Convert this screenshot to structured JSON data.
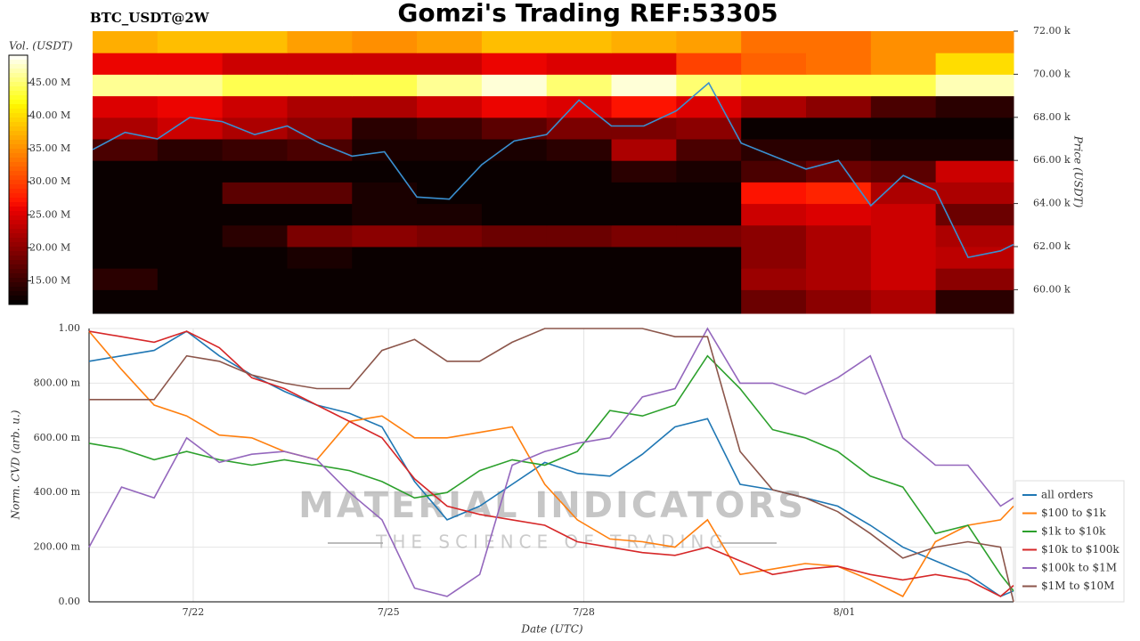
{
  "chart_data": [
    {
      "type": "heatmap",
      "title": "Gomzi's Trading REF:53305",
      "subtitle": "BTC_USDT@2W",
      "xlim": [
        20.4,
        34.6
      ],
      "xbins": [
        20.4,
        21.4,
        22.4,
        23.4,
        24.4,
        25.4,
        26.4,
        27.4,
        28.4,
        29.4,
        30.4,
        31.4,
        32.4,
        33.4,
        34.6
      ],
      "ybins": [
        58900,
        60000,
        61000,
        62000,
        63000,
        64000,
        65000,
        66000,
        67000,
        68000,
        69000,
        70000,
        71000,
        72000
      ],
      "z": [
        [
          12000000,
          12000000,
          12000000,
          12000000,
          12000000,
          12000000,
          12000000,
          12000000,
          12000000,
          12000000,
          18000000,
          20000000,
          22000000,
          14000000
        ],
        [
          14000000,
          12000000,
          12000000,
          12000000,
          12000000,
          12000000,
          12000000,
          12000000,
          12000000,
          12000000,
          21000000,
          22000000,
          24000000,
          20000000
        ],
        [
          12000000,
          12000000,
          12000000,
          13000000,
          12000000,
          12000000,
          12000000,
          12000000,
          12000000,
          12000000,
          20000000,
          22000000,
          24000000,
          23000000
        ],
        [
          12000000,
          12000000,
          14000000,
          19000000,
          20000000,
          19000000,
          18000000,
          18000000,
          19000000,
          19000000,
          20000000,
          22000000,
          24000000,
          22000000
        ],
        [
          12000000,
          12000000,
          12000000,
          12000000,
          13000000,
          13000000,
          12000000,
          12000000,
          12000000,
          12000000,
          24000000,
          25000000,
          24000000,
          18000000
        ],
        [
          12000000,
          12000000,
          17000000,
          17000000,
          13000000,
          12000000,
          12000000,
          12000000,
          12000000,
          12000000,
          27000000,
          28000000,
          22000000,
          22000000
        ],
        [
          12000000,
          12000000,
          12000000,
          12000000,
          12000000,
          12000000,
          12000000,
          12000000,
          14000000,
          13000000,
          16000000,
          18000000,
          17000000,
          24000000
        ],
        [
          16000000,
          14000000,
          15000000,
          16000000,
          13000000,
          13000000,
          13000000,
          14000000,
          22000000,
          16000000,
          14000000,
          14000000,
          13000000,
          13000000
        ],
        [
          22000000,
          24000000,
          22000000,
          20000000,
          14000000,
          15000000,
          17000000,
          19000000,
          19000000,
          20000000,
          12000000,
          12000000,
          12000000,
          12000000
        ],
        [
          25000000,
          26000000,
          24000000,
          22000000,
          22000000,
          24000000,
          26000000,
          25000000,
          27000000,
          25000000,
          22000000,
          20000000,
          16000000,
          14000000
        ],
        [
          46000000,
          46000000,
          44000000,
          44000000,
          44000000,
          46000000,
          48000000,
          45000000,
          48000000,
          45000000,
          44000000,
          44000000,
          44000000,
          47000000
        ],
        [
          26000000,
          26000000,
          24000000,
          24000000,
          24000000,
          24000000,
          26000000,
          25000000,
          25000000,
          30000000,
          32000000,
          33000000,
          35000000,
          40000000
        ],
        [
          37000000,
          38000000,
          38000000,
          36000000,
          35000000,
          36000000,
          38000000,
          38000000,
          37000000,
          36000000,
          33000000,
          33000000,
          35000000,
          35000000
        ]
      ],
      "colorbar": {
        "label": "Vol. (USDT)",
        "lim": [
          11400000,
          49200000
        ],
        "ticks": [
          {
            "value": 15000000,
            "label": "15.00 M"
          },
          {
            "value": 20000000,
            "label": "20.00 M"
          },
          {
            "value": 25000000,
            "label": "25.00 M"
          },
          {
            "value": 30000000,
            "label": "30.00 M"
          },
          {
            "value": 35000000,
            "label": "35.00 M"
          },
          {
            "value": 40000000,
            "label": "40.00 M"
          },
          {
            "value": 45000000,
            "label": "45.00 M"
          }
        ]
      },
      "ylabel": "Price (USDT)",
      "ylim": [
        58900,
        72000
      ],
      "yticks": [
        {
          "value": 60000,
          "label": "60.00 k"
        },
        {
          "value": 62000,
          "label": "62.00 k"
        },
        {
          "value": 64000,
          "label": "64.00 k"
        },
        {
          "value": 66000,
          "label": "66.00 k"
        },
        {
          "value": 68000,
          "label": "68.00 k"
        },
        {
          "value": 70000,
          "label": "70.00 k"
        },
        {
          "value": 72000,
          "label": "72.00 k"
        }
      ],
      "line": {
        "color": "#3a8fd0",
        "x": [
          20.4,
          20.9,
          21.4,
          21.9,
          22.4,
          22.9,
          23.4,
          23.9,
          24.4,
          24.9,
          25.4,
          25.9,
          26.4,
          26.9,
          27.4,
          27.9,
          28.4,
          28.9,
          29.4,
          29.9,
          30.4,
          30.9,
          31.4,
          31.9,
          32.4,
          32.9,
          33.4,
          33.9,
          34.4,
          34.6
        ],
        "values": [
          66500,
          67300,
          67000,
          68000,
          67800,
          67200,
          67600,
          66800,
          66200,
          66400,
          64300,
          64200,
          65800,
          66900,
          67200,
          68800,
          67600,
          67600,
          68300,
          69600,
          66800,
          66200,
          65600,
          66000,
          63900,
          65300,
          64600,
          61500,
          61800,
          62100
        ]
      }
    },
    {
      "type": "line",
      "ylabel": "Norm. CVD (arb. u.)",
      "xlabel": "Date (UTC)",
      "xlim": [
        20.4,
        34.6
      ],
      "xticks": [
        {
          "value": 22,
          "label": "7/22"
        },
        {
          "value": 25,
          "label": "7/25"
        },
        {
          "value": 28,
          "label": "7/28"
        },
        {
          "value": 32,
          "label": "8/01"
        }
      ],
      "ylim": [
        0,
        1
      ],
      "yticks": [
        {
          "value": 0,
          "label": "0.00"
        },
        {
          "value": 0.2,
          "label": "200.00 m"
        },
        {
          "value": 0.4,
          "label": "400.00 m"
        },
        {
          "value": 0.6,
          "label": "600.00 m"
        },
        {
          "value": 0.8,
          "label": "800.00 m"
        },
        {
          "value": 1,
          "label": "1.00"
        }
      ],
      "grid": true,
      "legend": "right",
      "annotations": [
        "MATERIAL INDICATORS",
        "THE SCIENCE OF TRADING"
      ],
      "x": [
        20.4,
        20.9,
        21.4,
        21.9,
        22.4,
        22.9,
        23.4,
        23.9,
        24.4,
        24.9,
        25.4,
        25.9,
        26.4,
        26.9,
        27.4,
        27.9,
        28.4,
        28.9,
        29.4,
        29.9,
        30.4,
        30.9,
        31.4,
        31.9,
        32.4,
        32.9,
        33.4,
        33.9,
        34.4,
        34.6
      ],
      "series": [
        {
          "name": "all orders",
          "color": "#1f77b4",
          "values": [
            0.88,
            0.9,
            0.92,
            0.99,
            0.9,
            0.83,
            0.77,
            0.72,
            0.69,
            0.64,
            0.44,
            0.3,
            0.35,
            0.43,
            0.51,
            0.47,
            0.46,
            0.54,
            0.64,
            0.67,
            0.43,
            0.41,
            0.38,
            0.35,
            0.28,
            0.2,
            0.15,
            0.1,
            0.02,
            0.04
          ]
        },
        {
          "name": "$100 to $1k",
          "color": "#ff7f0e",
          "values": [
            0.99,
            0.85,
            0.72,
            0.68,
            0.61,
            0.6,
            0.55,
            0.52,
            0.66,
            0.68,
            0.6,
            0.6,
            0.62,
            0.64,
            0.43,
            0.3,
            0.23,
            0.22,
            0.2,
            0.3,
            0.1,
            0.12,
            0.14,
            0.13,
            0.08,
            0.02,
            0.22,
            0.28,
            0.3,
            0.35
          ]
        },
        {
          "name": "$1k to $10k",
          "color": "#2ca02c",
          "values": [
            0.58,
            0.56,
            0.52,
            0.55,
            0.52,
            0.5,
            0.52,
            0.5,
            0.48,
            0.44,
            0.38,
            0.4,
            0.48,
            0.52,
            0.5,
            0.55,
            0.7,
            0.68,
            0.72,
            0.9,
            0.78,
            0.63,
            0.6,
            0.55,
            0.46,
            0.42,
            0.25,
            0.28,
            0.1,
            0.04
          ]
        },
        {
          "name": "$10k to $100k",
          "color": "#d62728",
          "values": [
            0.99,
            0.97,
            0.95,
            0.99,
            0.93,
            0.82,
            0.78,
            0.72,
            0.66,
            0.6,
            0.45,
            0.35,
            0.32,
            0.3,
            0.28,
            0.22,
            0.2,
            0.18,
            0.17,
            0.2,
            0.15,
            0.1,
            0.12,
            0.13,
            0.1,
            0.08,
            0.1,
            0.08,
            0.02,
            0.06
          ]
        },
        {
          "name": "$100k to $1M",
          "color": "#9467bd",
          "values": [
            0.2,
            0.42,
            0.38,
            0.6,
            0.51,
            0.54,
            0.55,
            0.52,
            0.4,
            0.3,
            0.05,
            0.02,
            0.1,
            0.5,
            0.55,
            0.58,
            0.6,
            0.75,
            0.78,
            1.0,
            0.8,
            0.8,
            0.76,
            0.82,
            0.9,
            0.6,
            0.5,
            0.5,
            0.35,
            0.38
          ]
        },
        {
          "name": "$1M to $10M",
          "color": "#8c564b",
          "values": [
            0.74,
            0.74,
            0.74,
            0.9,
            0.88,
            0.83,
            0.8,
            0.78,
            0.78,
            0.92,
            0.96,
            0.88,
            0.88,
            0.95,
            1.0,
            1.0,
            1.0,
            1.0,
            0.97,
            0.97,
            0.55,
            0.41,
            0.38,
            0.33,
            0.25,
            0.16,
            0.2,
            0.22,
            0.2,
            0.0
          ]
        }
      ]
    }
  ]
}
